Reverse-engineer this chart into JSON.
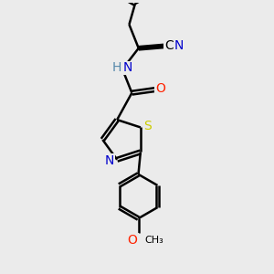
{
  "bg_color": "#ebebeb",
  "bond_color": "#000000",
  "bond_width": 1.8,
  "atom_colors": {
    "N": "#0000cc",
    "O": "#ff2200",
    "S": "#cccc00",
    "C": "#000000",
    "H": "#5588aa"
  },
  "font_size_atom": 10,
  "font_size_small": 8
}
